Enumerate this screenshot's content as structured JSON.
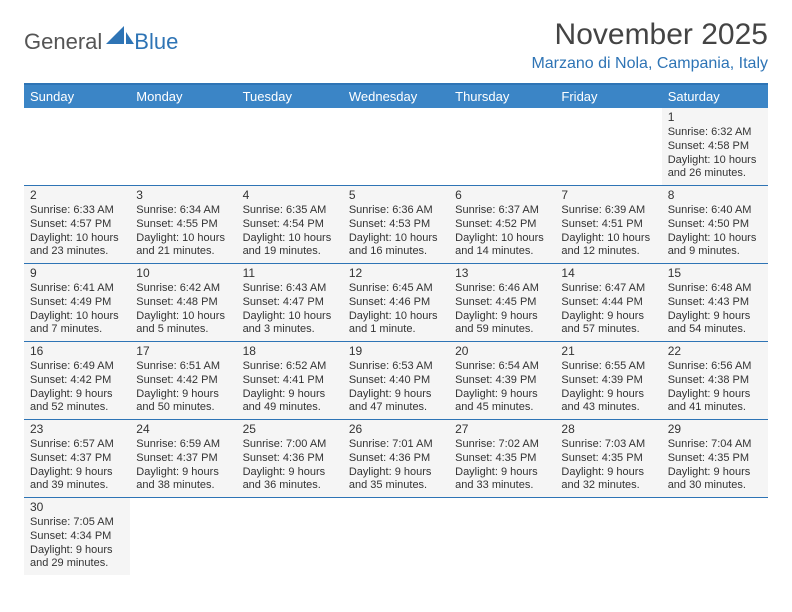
{
  "logo": {
    "general": "General",
    "blue": "Blue"
  },
  "title": "November 2025",
  "location": "Marzano di Nola, Campania, Italy",
  "dow": [
    "Sunday",
    "Monday",
    "Tuesday",
    "Wednesday",
    "Thursday",
    "Friday",
    "Saturday"
  ],
  "colors": {
    "accent": "#2e74b5",
    "header_bg": "#3b85c6",
    "cell_bg": "#f5f5f5",
    "empty_bg": "#ffffff",
    "text": "#333333"
  },
  "weeks": [
    [
      null,
      null,
      null,
      null,
      null,
      null,
      {
        "d": "1",
        "sr": "Sunrise: 6:32 AM",
        "ss": "Sunset: 4:58 PM",
        "dl1": "Daylight: 10 hours",
        "dl2": "and 26 minutes."
      }
    ],
    [
      {
        "d": "2",
        "sr": "Sunrise: 6:33 AM",
        "ss": "Sunset: 4:57 PM",
        "dl1": "Daylight: 10 hours",
        "dl2": "and 23 minutes."
      },
      {
        "d": "3",
        "sr": "Sunrise: 6:34 AM",
        "ss": "Sunset: 4:55 PM",
        "dl1": "Daylight: 10 hours",
        "dl2": "and 21 minutes."
      },
      {
        "d": "4",
        "sr": "Sunrise: 6:35 AM",
        "ss": "Sunset: 4:54 PM",
        "dl1": "Daylight: 10 hours",
        "dl2": "and 19 minutes."
      },
      {
        "d": "5",
        "sr": "Sunrise: 6:36 AM",
        "ss": "Sunset: 4:53 PM",
        "dl1": "Daylight: 10 hours",
        "dl2": "and 16 minutes."
      },
      {
        "d": "6",
        "sr": "Sunrise: 6:37 AM",
        "ss": "Sunset: 4:52 PM",
        "dl1": "Daylight: 10 hours",
        "dl2": "and 14 minutes."
      },
      {
        "d": "7",
        "sr": "Sunrise: 6:39 AM",
        "ss": "Sunset: 4:51 PM",
        "dl1": "Daylight: 10 hours",
        "dl2": "and 12 minutes."
      },
      {
        "d": "8",
        "sr": "Sunrise: 6:40 AM",
        "ss": "Sunset: 4:50 PM",
        "dl1": "Daylight: 10 hours",
        "dl2": "and 9 minutes."
      }
    ],
    [
      {
        "d": "9",
        "sr": "Sunrise: 6:41 AM",
        "ss": "Sunset: 4:49 PM",
        "dl1": "Daylight: 10 hours",
        "dl2": "and 7 minutes."
      },
      {
        "d": "10",
        "sr": "Sunrise: 6:42 AM",
        "ss": "Sunset: 4:48 PM",
        "dl1": "Daylight: 10 hours",
        "dl2": "and 5 minutes."
      },
      {
        "d": "11",
        "sr": "Sunrise: 6:43 AM",
        "ss": "Sunset: 4:47 PM",
        "dl1": "Daylight: 10 hours",
        "dl2": "and 3 minutes."
      },
      {
        "d": "12",
        "sr": "Sunrise: 6:45 AM",
        "ss": "Sunset: 4:46 PM",
        "dl1": "Daylight: 10 hours",
        "dl2": "and 1 minute."
      },
      {
        "d": "13",
        "sr": "Sunrise: 6:46 AM",
        "ss": "Sunset: 4:45 PM",
        "dl1": "Daylight: 9 hours",
        "dl2": "and 59 minutes."
      },
      {
        "d": "14",
        "sr": "Sunrise: 6:47 AM",
        "ss": "Sunset: 4:44 PM",
        "dl1": "Daylight: 9 hours",
        "dl2": "and 57 minutes."
      },
      {
        "d": "15",
        "sr": "Sunrise: 6:48 AM",
        "ss": "Sunset: 4:43 PM",
        "dl1": "Daylight: 9 hours",
        "dl2": "and 54 minutes."
      }
    ],
    [
      {
        "d": "16",
        "sr": "Sunrise: 6:49 AM",
        "ss": "Sunset: 4:42 PM",
        "dl1": "Daylight: 9 hours",
        "dl2": "and 52 minutes."
      },
      {
        "d": "17",
        "sr": "Sunrise: 6:51 AM",
        "ss": "Sunset: 4:42 PM",
        "dl1": "Daylight: 9 hours",
        "dl2": "and 50 minutes."
      },
      {
        "d": "18",
        "sr": "Sunrise: 6:52 AM",
        "ss": "Sunset: 4:41 PM",
        "dl1": "Daylight: 9 hours",
        "dl2": "and 49 minutes."
      },
      {
        "d": "19",
        "sr": "Sunrise: 6:53 AM",
        "ss": "Sunset: 4:40 PM",
        "dl1": "Daylight: 9 hours",
        "dl2": "and 47 minutes."
      },
      {
        "d": "20",
        "sr": "Sunrise: 6:54 AM",
        "ss": "Sunset: 4:39 PM",
        "dl1": "Daylight: 9 hours",
        "dl2": "and 45 minutes."
      },
      {
        "d": "21",
        "sr": "Sunrise: 6:55 AM",
        "ss": "Sunset: 4:39 PM",
        "dl1": "Daylight: 9 hours",
        "dl2": "and 43 minutes."
      },
      {
        "d": "22",
        "sr": "Sunrise: 6:56 AM",
        "ss": "Sunset: 4:38 PM",
        "dl1": "Daylight: 9 hours",
        "dl2": "and 41 minutes."
      }
    ],
    [
      {
        "d": "23",
        "sr": "Sunrise: 6:57 AM",
        "ss": "Sunset: 4:37 PM",
        "dl1": "Daylight: 9 hours",
        "dl2": "and 39 minutes."
      },
      {
        "d": "24",
        "sr": "Sunrise: 6:59 AM",
        "ss": "Sunset: 4:37 PM",
        "dl1": "Daylight: 9 hours",
        "dl2": "and 38 minutes."
      },
      {
        "d": "25",
        "sr": "Sunrise: 7:00 AM",
        "ss": "Sunset: 4:36 PM",
        "dl1": "Daylight: 9 hours",
        "dl2": "and 36 minutes."
      },
      {
        "d": "26",
        "sr": "Sunrise: 7:01 AM",
        "ss": "Sunset: 4:36 PM",
        "dl1": "Daylight: 9 hours",
        "dl2": "and 35 minutes."
      },
      {
        "d": "27",
        "sr": "Sunrise: 7:02 AM",
        "ss": "Sunset: 4:35 PM",
        "dl1": "Daylight: 9 hours",
        "dl2": "and 33 minutes."
      },
      {
        "d": "28",
        "sr": "Sunrise: 7:03 AM",
        "ss": "Sunset: 4:35 PM",
        "dl1": "Daylight: 9 hours",
        "dl2": "and 32 minutes."
      },
      {
        "d": "29",
        "sr": "Sunrise: 7:04 AM",
        "ss": "Sunset: 4:35 PM",
        "dl1": "Daylight: 9 hours",
        "dl2": "and 30 minutes."
      }
    ],
    [
      {
        "d": "30",
        "sr": "Sunrise: 7:05 AM",
        "ss": "Sunset: 4:34 PM",
        "dl1": "Daylight: 9 hours",
        "dl2": "and 29 minutes."
      },
      null,
      null,
      null,
      null,
      null,
      null
    ]
  ]
}
